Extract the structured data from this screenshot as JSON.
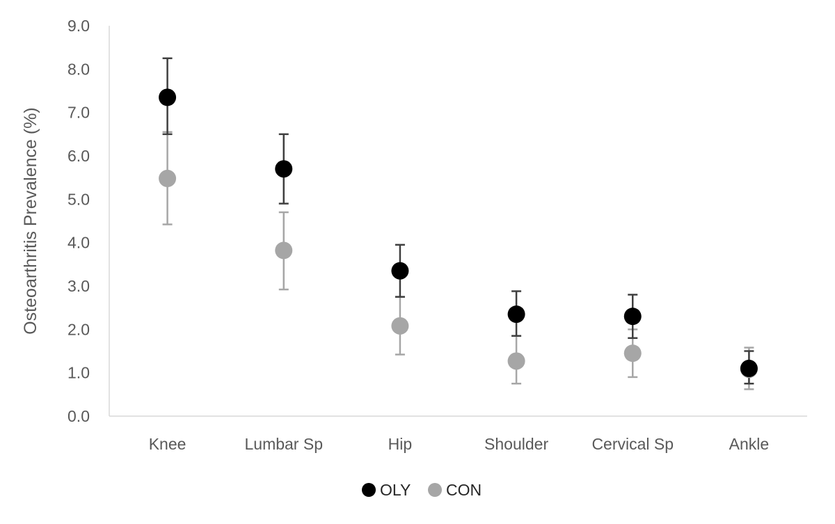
{
  "chart_data": {
    "type": "scatter",
    "title": "",
    "xlabel": "",
    "ylabel": "Osteoarthritis Prevalence (%)",
    "ylim": [
      0,
      9
    ],
    "yticks": [
      "0.0",
      "1.0",
      "2.0",
      "3.0",
      "4.0",
      "5.0",
      "6.0",
      "7.0",
      "8.0",
      "9.0"
    ],
    "categories": [
      "Knee",
      "Lumbar Sp",
      "Hip",
      "Shoulder",
      "Cervical Sp",
      "Ankle"
    ],
    "grid": false,
    "legend": {
      "placement": "bottom"
    },
    "series": [
      {
        "name": "OLY",
        "color": "#000000",
        "errorbar_color": "#3f3f3f",
        "values": [
          7.35,
          5.7,
          3.35,
          2.35,
          2.3,
          1.1
        ],
        "lower": [
          6.5,
          4.9,
          2.75,
          1.85,
          1.8,
          0.75
        ],
        "upper": [
          8.25,
          6.5,
          3.95,
          2.88,
          2.8,
          1.5
        ]
      },
      {
        "name": "CON",
        "color": "#a6a6a6",
        "errorbar_color": "#a6a6a6",
        "values": [
          5.48,
          3.82,
          2.08,
          1.27,
          1.45,
          1.08
        ],
        "lower": [
          4.42,
          2.92,
          1.42,
          0.75,
          0.9,
          0.62
        ],
        "upper": [
          6.55,
          4.7,
          2.75,
          1.85,
          2.0,
          1.58
        ]
      }
    ]
  }
}
